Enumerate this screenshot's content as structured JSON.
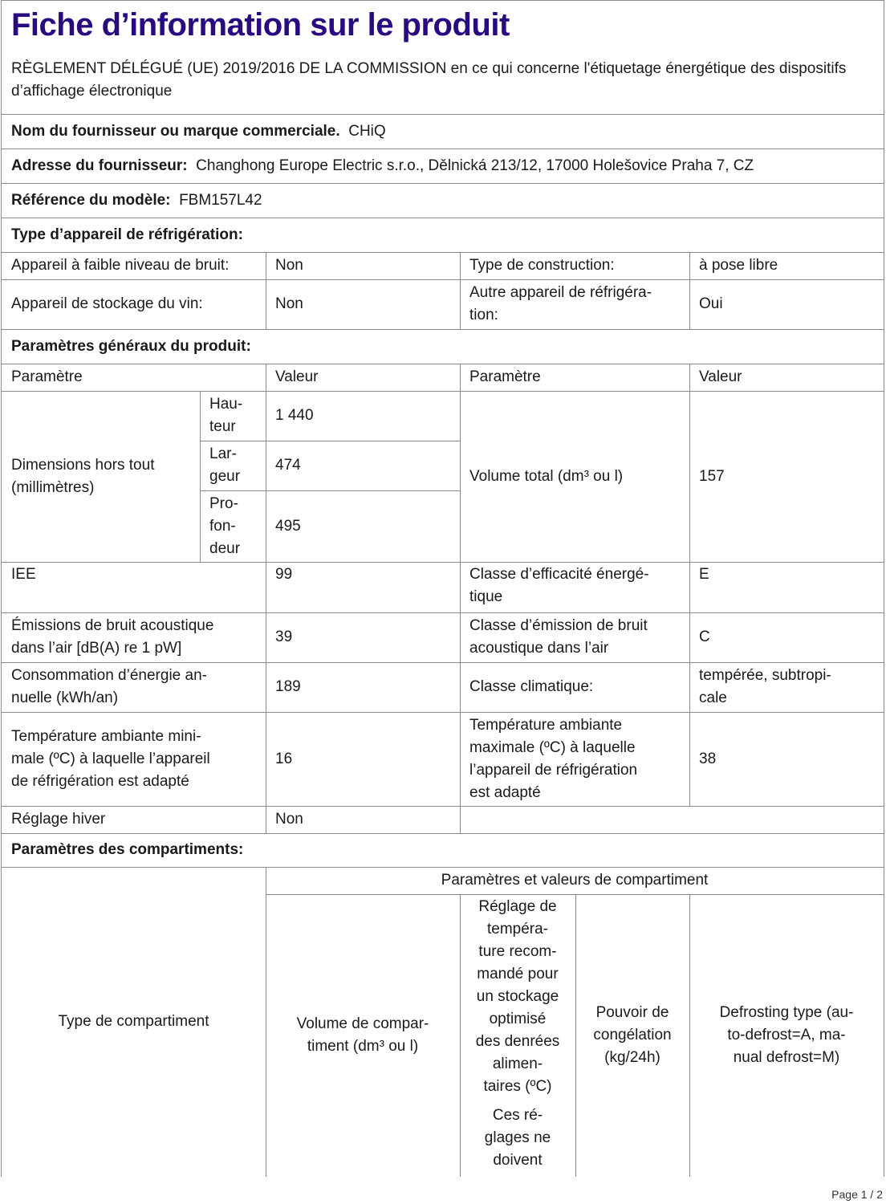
{
  "title": "Fiche d’information sur le produit",
  "regulation": "RÈGLEMENT DÉLÉGUÉ (UE) 2019/2016 DE LA COMMISSION en ce qui concerne l'étiquetage énergétique des dispositifs d’affichage électronique",
  "supplier": {
    "label": "Nom du fournisseur ou marque commerciale.",
    "value": "CHiQ"
  },
  "address": {
    "label": "Adresse du fournisseur:",
    "value": "Changhong Europe Electric s.r.o., Dělnická 213/12, 17000 Holešovice Praha 7, CZ"
  },
  "model": {
    "label": "Référence du modèle:",
    "value": "FBM157L42"
  },
  "appliance_type": {
    "heading": "Type d’appareil de réfrigération:",
    "low_noise_label": "Appareil à faible niveau de bruit:",
    "low_noise_value": "Non",
    "construction_label": "Type de construction:",
    "construction_value": "à pose libre",
    "wine_label": "Appareil de stockage du vin:",
    "wine_value": "Non",
    "other_label": "Autre appareil de réfrigéra-\ntion:",
    "other_value": "Oui"
  },
  "general": {
    "heading": "Paramètres généraux du produit:",
    "col_param": "Paramètre",
    "col_value": "Valeur",
    "dimensions_label": "Dimensions hors tout\n(millimètres)",
    "height_label": "Hau-\nteur",
    "height_value": "1 440",
    "width_label": "Lar-\ngeur",
    "width_value": "474",
    "depth_label": "Pro-\nfon-\ndeur",
    "depth_value": "495",
    "volume_label": "Volume total (dm³ ou l)",
    "volume_value": "157",
    "eei_label": "IEE",
    "eei_value": "99",
    "energy_class_label": "Classe d’efficacité énergé-\ntique",
    "energy_class_value": "E",
    "noise_label": "Émissions de bruit acoustique\ndans l’air [dB(A) re 1 pW]",
    "noise_value": "39",
    "noise_class_label": "Classe d’émission de bruit\nacoustique dans l’air",
    "noise_class_value": "C",
    "consumption_label": "Consommation d’énergie an-\nnuelle (kWh/an)",
    "consumption_value": "189",
    "climate_label": "Classe climatique:",
    "climate_value": "tempérée, subtropi-\ncale",
    "min_temp_label": "Température ambiante mini-\nmale (ºC) à laquelle l’appareil\nde réfrigération est adapté",
    "min_temp_value": "16",
    "max_temp_label": "Température ambiante\nmaximale (ºC) à laquelle\nl’appareil de réfrigération\nest adapté",
    "max_temp_value": "38",
    "winter_label": "Réglage hiver",
    "winter_value": "Non"
  },
  "compartments": {
    "heading": "Paramètres des compartiments:",
    "type_label": "Type de compartiment",
    "group_label": "Paramètres et valeurs de compartiment",
    "volume_label": "Volume de compar-\ntiment (dm³ ou l)",
    "temp_label": "Réglage de\ntempéra-\nture recom-\nmandé pour\nun stockage\noptimisé\ndes denrées\nalimen-\ntaires (ºC)",
    "temp_note": "Ces ré-\nglages ne\ndoivent",
    "freezing_label": "Pouvoir de\ncongélation\n(kg/24h)",
    "defrost_label": "Defrosting type (au-\nto-defrost=A, ma-\nnual defrost=M)"
  },
  "footer": "Page 1 / 2"
}
